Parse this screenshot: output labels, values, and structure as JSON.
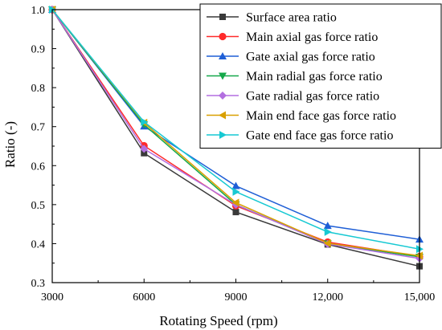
{
  "chart_data": {
    "type": "line",
    "xlabel": "Rotating Speed (rpm)",
    "ylabel": "Ratio (-)",
    "x": [
      3000,
      6000,
      9000,
      12000,
      15000
    ],
    "x_tick_labels": [
      "3000",
      "6000",
      "9000",
      "12,000",
      "15,000"
    ],
    "xlim": [
      3000,
      15000
    ],
    "ylim": [
      0.3,
      1.0
    ],
    "y_ticks": [
      0.3,
      0.4,
      0.5,
      0.6,
      0.7,
      0.8,
      0.9,
      1.0
    ],
    "y_tick_labels": [
      "0.3",
      "0.4",
      "0.5",
      "0.6",
      "0.7",
      "0.8",
      "0.9",
      "1.0"
    ],
    "grid": false,
    "legend_position": "top-right",
    "series": [
      {
        "name": "Surface area ratio",
        "color": "#3a3a3a",
        "marker": "square",
        "values": [
          1.0,
          0.632,
          0.481,
          0.398,
          0.342
        ]
      },
      {
        "name": "Main axial gas force ratio",
        "color": "#ff2a2a",
        "marker": "circle",
        "values": [
          1.0,
          0.651,
          0.497,
          0.404,
          0.367
        ]
      },
      {
        "name": "Gate axial gas force ratio",
        "color": "#1f5fd6",
        "marker": "triangle-up",
        "values": [
          1.0,
          0.701,
          0.548,
          0.446,
          0.411
        ]
      },
      {
        "name": "Main radial gas force ratio",
        "color": "#15a84a",
        "marker": "triangle-down",
        "values": [
          1.0,
          0.705,
          0.5,
          0.4,
          0.366
        ]
      },
      {
        "name": "Gate radial gas force ratio",
        "color": "#b36fe0",
        "marker": "diamond",
        "values": [
          1.0,
          0.643,
          0.5,
          0.399,
          0.362
        ]
      },
      {
        "name": "Main end face gas force ratio",
        "color": "#d9a000",
        "marker": "triangle-left",
        "values": [
          1.0,
          0.71,
          0.505,
          0.401,
          0.369
        ]
      },
      {
        "name": "Gate end face gas force ratio",
        "color": "#17c9d3",
        "marker": "triangle-right",
        "values": [
          1.0,
          0.712,
          0.533,
          0.43,
          0.386
        ]
      }
    ]
  }
}
